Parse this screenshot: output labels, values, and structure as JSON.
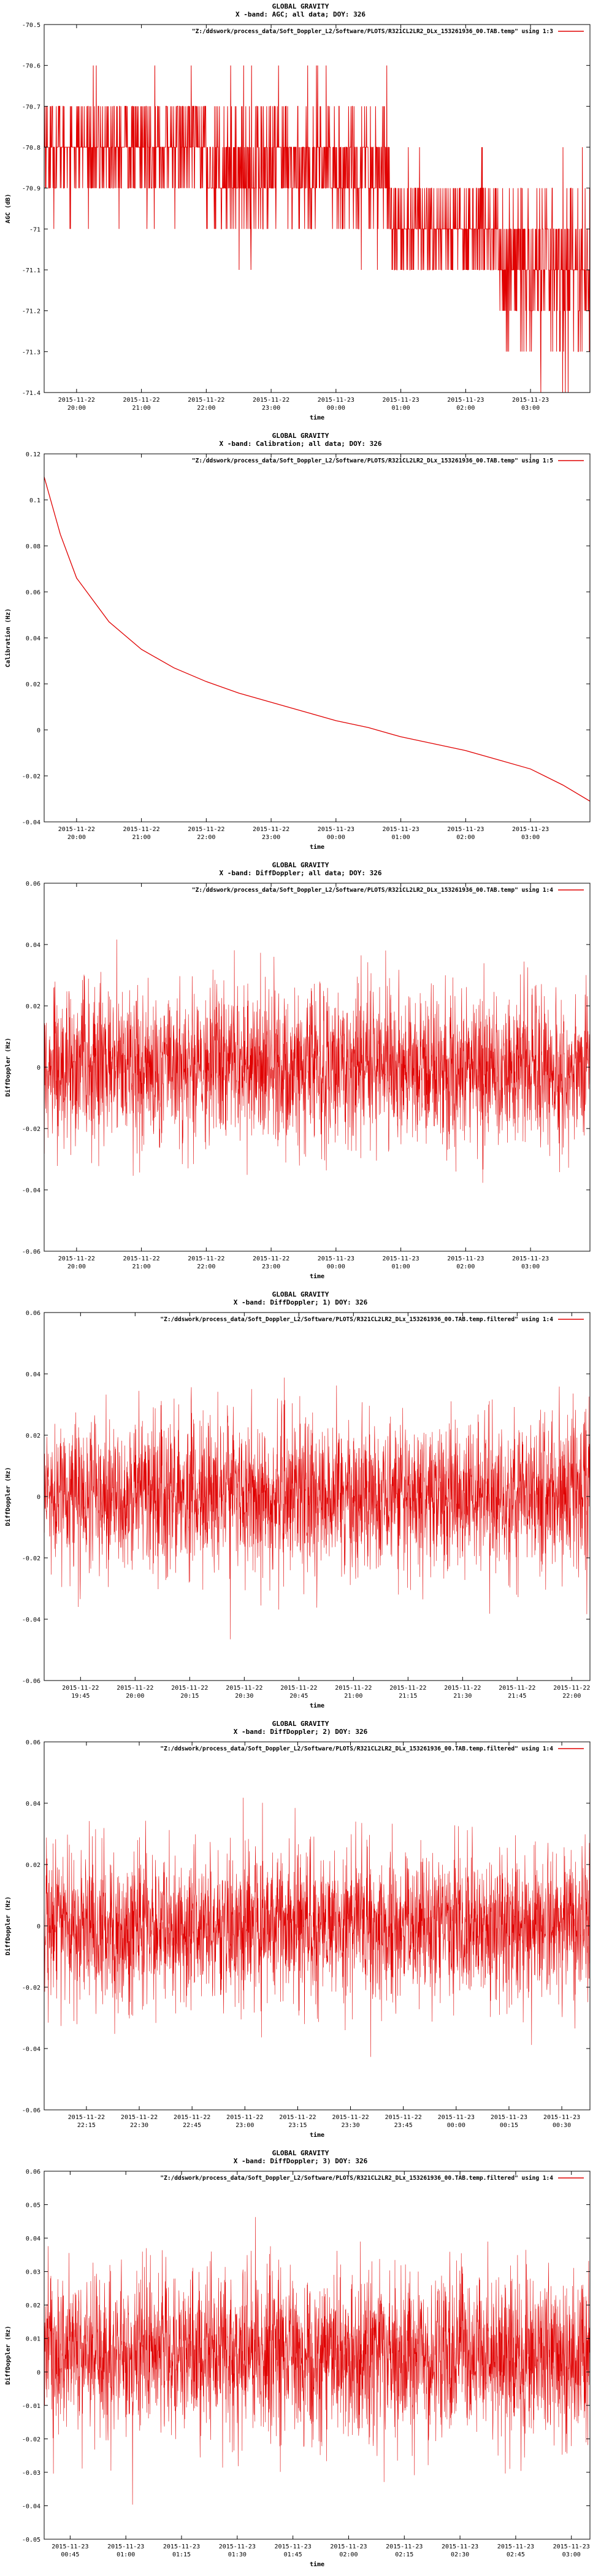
{
  "series_color": "#e00000",
  "chart_data": [
    {
      "type": "line",
      "title": "GLOBAL GRAVITY",
      "subtitle": "X -band: AGC; all data; DOY: 326",
      "legend": "\"Z:/ddswork/process_data/Soft_Doppler_L2/Software/PLOTS/R321CL2LR2_DLx_153261936_00.TAB.temp\" using 1:3",
      "legend_position": "top-right",
      "xlabel": "time",
      "ylabel": "AGC (dB)",
      "ylim": [
        -71.4,
        -70.5
      ],
      "yticks": [
        "-70.5",
        "-70.6",
        "-70.7",
        "-70.8",
        "-70.9",
        "-71",
        "-71.1",
        "-71.2",
        "-71.3",
        "-71.4"
      ],
      "xticks": [
        [
          "2015-11-22",
          "20:00"
        ],
        [
          "2015-11-22",
          "21:00"
        ],
        [
          "2015-11-22",
          "22:00"
        ],
        [
          "2015-11-22",
          "23:00"
        ],
        [
          "2015-11-23",
          "00:00"
        ],
        [
          "2015-11-23",
          "01:00"
        ],
        [
          "2015-11-23",
          "02:00"
        ],
        [
          "2015-11-23",
          "03:00"
        ]
      ],
      "xlim": [
        "2015-11-22 19:30",
        "2015-11-23 03:55"
      ],
      "x_tick_dates": [
        "2015-11-22 20:00",
        "2015-11-22 21:00",
        "2015-11-22 22:00",
        "2015-11-22 23:00",
        "2015-11-23 00:00",
        "2015-11-23 01:00",
        "2015-11-23 02:00",
        "2015-11-23 03:00"
      ],
      "series_shape": "quantized-steps",
      "data_summary": {
        "levels": [
          -70.6,
          -70.7,
          -70.8,
          -70.9,
          -71.0,
          -71.1,
          -71.2,
          -71.3
        ],
        "segments": [
          {
            "from": "2015-11-22 19:30",
            "to": "2015-11-22 19:40",
            "low": -71.0,
            "high": -70.6
          },
          {
            "from": "2015-11-22 19:40",
            "to": "2015-11-22 22:00",
            "low": -71.0,
            "high": -70.6
          },
          {
            "from": "2015-11-22 22:00",
            "to": "2015-11-23 00:50",
            "low": -71.1,
            "high": -70.6
          },
          {
            "from": "2015-11-23 00:50",
            "to": "2015-11-23 02:30",
            "low": -71.2,
            "high": -70.8
          },
          {
            "from": "2015-11-23 02:30",
            "to": "2015-11-23 03:55",
            "low": -71.4,
            "high": -70.8
          }
        ]
      },
      "grid": false
    },
    {
      "type": "line",
      "title": "GLOBAL GRAVITY",
      "subtitle": "X -band: Calibration; all data; DOY: 326",
      "legend": "\"Z:/ddswork/process_data/Soft_Doppler_L2/Software/PLOTS/R321CL2LR2_DLx_153261936_00.TAB.temp\" using 1:5",
      "legend_position": "top-right",
      "xlabel": "time",
      "ylabel": "Calibration (Hz)",
      "ylim": [
        -0.04,
        0.12
      ],
      "yticks": [
        "0.12",
        "0.1",
        "0.08",
        "0.06",
        "0.04",
        "0.02",
        "0",
        "-0.02",
        "-0.04"
      ],
      "xticks": [
        [
          "2015-11-22",
          "20:00"
        ],
        [
          "2015-11-22",
          "21:00"
        ],
        [
          "2015-11-22",
          "22:00"
        ],
        [
          "2015-11-22",
          "23:00"
        ],
        [
          "2015-11-23",
          "00:00"
        ],
        [
          "2015-11-23",
          "01:00"
        ],
        [
          "2015-11-23",
          "02:00"
        ],
        [
          "2015-11-23",
          "03:00"
        ]
      ],
      "xlim": [
        "2015-11-22 19:30",
        "2015-11-23 03:55"
      ],
      "x_tick_dates": [
        "2015-11-22 20:00",
        "2015-11-22 21:00",
        "2015-11-22 22:00",
        "2015-11-22 23:00",
        "2015-11-23 00:00",
        "2015-11-23 01:00",
        "2015-11-23 02:00",
        "2015-11-23 03:00"
      ],
      "series_shape": "smooth-curve",
      "x": [
        "2015-11-22 19:30",
        "2015-11-22 19:45",
        "2015-11-22 20:00",
        "2015-11-22 20:30",
        "2015-11-22 21:00",
        "2015-11-22 21:30",
        "2015-11-22 22:00",
        "2015-11-22 22:30",
        "2015-11-22 23:00",
        "2015-11-22 23:30",
        "2015-11-23 00:00",
        "2015-11-23 00:30",
        "2015-11-23 01:00",
        "2015-11-23 01:30",
        "2015-11-23 02:00",
        "2015-11-23 02:30",
        "2015-11-23 03:00",
        "2015-11-23 03:30",
        "2015-11-23 03:55"
      ],
      "y": [
        0.11,
        0.085,
        0.066,
        0.047,
        0.035,
        0.027,
        0.021,
        0.016,
        0.012,
        0.008,
        0.004,
        0.001,
        -0.003,
        -0.006,
        -0.009,
        -0.013,
        -0.017,
        -0.024,
        -0.031
      ],
      "grid": false
    },
    {
      "type": "line",
      "title": "GLOBAL GRAVITY",
      "subtitle": "X -band: DiffDoppler; all data; DOY: 326",
      "legend": "\"Z:/ddswork/process_data/Soft_Doppler_L2/Software/PLOTS/R321CL2LR2_DLx_153261936_00.TAB.temp\" using 1:4",
      "legend_position": "top-right",
      "xlabel": "time",
      "ylabel": "DiffDoppler (Hz)",
      "ylim": [
        -0.06,
        0.06
      ],
      "yticks": [
        "0.06",
        "0.04",
        "0.02",
        "0",
        "-0.02",
        "-0.04",
        "-0.06"
      ],
      "xticks": [
        [
          "2015-11-22",
          "20:00"
        ],
        [
          "2015-11-22",
          "21:00"
        ],
        [
          "2015-11-22",
          "22:00"
        ],
        [
          "2015-11-22",
          "23:00"
        ],
        [
          "2015-11-23",
          "00:00"
        ],
        [
          "2015-11-23",
          "01:00"
        ],
        [
          "2015-11-23",
          "02:00"
        ],
        [
          "2015-11-23",
          "03:00"
        ]
      ],
      "xlim": [
        "2015-11-22 19:30",
        "2015-11-23 03:55"
      ],
      "x_tick_dates": [
        "2015-11-22 20:00",
        "2015-11-22 21:00",
        "2015-11-22 22:00",
        "2015-11-22 23:00",
        "2015-11-23 00:00",
        "2015-11-23 01:00",
        "2015-11-23 02:00",
        "2015-11-23 03:00"
      ],
      "series_shape": "noise",
      "data_summary": {
        "mean": 0.0,
        "typical_band": [
          -0.02,
          0.02
        ],
        "extremes": [
          -0.05,
          0.05
        ]
      },
      "grid": false
    },
    {
      "type": "line",
      "title": "GLOBAL GRAVITY",
      "subtitle": "X -band: DiffDoppler; 1) DOY: 326",
      "legend": "\"Z:/ddswork/process_data/Soft_Doppler_L2/Software/PLOTS/R321CL2LR2_DLx_153261936_00.TAB.temp.filtered\" using 1:4",
      "legend_position": "top-right",
      "xlabel": "time",
      "ylabel": "DiffDoppler (Hz)",
      "ylim": [
        -0.06,
        0.06
      ],
      "yticks": [
        "0.06",
        "0.04",
        "0.02",
        "0",
        "-0.02",
        "-0.04",
        "-0.06"
      ],
      "xticks": [
        [
          "2015-11-22",
          "19:45"
        ],
        [
          "2015-11-22",
          "20:00"
        ],
        [
          "2015-11-22",
          "20:15"
        ],
        [
          "2015-11-22",
          "20:30"
        ],
        [
          "2015-11-22",
          "20:45"
        ],
        [
          "2015-11-22",
          "21:00"
        ],
        [
          "2015-11-22",
          "21:15"
        ],
        [
          "2015-11-22",
          "21:30"
        ],
        [
          "2015-11-22",
          "21:45"
        ],
        [
          "2015-11-22",
          "22:00"
        ]
      ],
      "xlim": [
        "2015-11-22 19:35",
        "2015-11-22 22:05"
      ],
      "x_tick_dates": [
        "2015-11-22 19:45",
        "2015-11-22 20:00",
        "2015-11-22 20:15",
        "2015-11-22 20:30",
        "2015-11-22 20:45",
        "2015-11-22 21:00",
        "2015-11-22 21:15",
        "2015-11-22 21:30",
        "2015-11-22 21:45",
        "2015-11-22 22:00"
      ],
      "series_shape": "noise",
      "data_summary": {
        "mean": 0.0,
        "typical_band": [
          -0.02,
          0.02
        ],
        "extremes": [
          -0.05,
          0.045
        ]
      },
      "grid": false
    },
    {
      "type": "line",
      "title": "GLOBAL GRAVITY",
      "subtitle": "X -band: DiffDoppler; 2) DOY: 326",
      "legend": "\"Z:/ddswork/process_data/Soft_Doppler_L2/Software/PLOTS/R321CL2LR2_DLx_153261936_00.TAB.temp.filtered\" using 1:4",
      "legend_position": "top-right",
      "xlabel": "time",
      "ylabel": "DiffDoppler (Hz)",
      "ylim": [
        -0.06,
        0.06
      ],
      "yticks": [
        "0.06",
        "0.04",
        "0.02",
        "0",
        "-0.02",
        "-0.04",
        "-0.06"
      ],
      "xticks": [
        [
          "2015-11-22",
          "22:15"
        ],
        [
          "2015-11-22",
          "22:30"
        ],
        [
          "2015-11-22",
          "22:45"
        ],
        [
          "2015-11-22",
          "23:00"
        ],
        [
          "2015-11-22",
          "23:15"
        ],
        [
          "2015-11-22",
          "23:30"
        ],
        [
          "2015-11-22",
          "23:45"
        ],
        [
          "2015-11-23",
          "00:00"
        ],
        [
          "2015-11-23",
          "00:15"
        ],
        [
          "2015-11-23",
          "00:30"
        ]
      ],
      "xlim": [
        "2015-11-22 22:03",
        "2015-11-23 00:38"
      ],
      "x_tick_dates": [
        "2015-11-22 22:15",
        "2015-11-22 22:30",
        "2015-11-22 22:45",
        "2015-11-22 23:00",
        "2015-11-22 23:15",
        "2015-11-22 23:30",
        "2015-11-22 23:45",
        "2015-11-23 00:00",
        "2015-11-23 00:15",
        "2015-11-23 00:30"
      ],
      "series_shape": "noise",
      "data_summary": {
        "mean": 0.0,
        "typical_band": [
          -0.02,
          0.02
        ],
        "extremes": [
          -0.05,
          0.05
        ]
      },
      "grid": false
    },
    {
      "type": "line",
      "title": "GLOBAL GRAVITY",
      "subtitle": "X -band: DiffDoppler; 3) DOY: 326",
      "legend": "\"Z:/ddswork/process_data/Soft_Doppler_L2/Software/PLOTS/R321CL2LR2_DLx_153261936_00.TAB.temp.filtered\" using 1:4",
      "legend_position": "top-right",
      "xlabel": "time",
      "ylabel": "DiffDoppler (Hz)",
      "ylim": [
        -0.05,
        0.06
      ],
      "yticks": [
        "0.06",
        "0.05",
        "0.04",
        "0.03",
        "0.02",
        "0.01",
        "0",
        "-0.01",
        "-0.02",
        "-0.03",
        "-0.04",
        "-0.05"
      ],
      "xticks": [
        [
          "2015-11-23",
          "00:45"
        ],
        [
          "2015-11-23",
          "01:00"
        ],
        [
          "2015-11-23",
          "01:15"
        ],
        [
          "2015-11-23",
          "01:30"
        ],
        [
          "2015-11-23",
          "01:45"
        ],
        [
          "2015-11-23",
          "02:00"
        ],
        [
          "2015-11-23",
          "02:15"
        ],
        [
          "2015-11-23",
          "02:30"
        ],
        [
          "2015-11-23",
          "02:45"
        ],
        [
          "2015-11-23",
          "03:00"
        ]
      ],
      "xlim": [
        "2015-11-23 00:38",
        "2015-11-23 03:05"
      ],
      "x_tick_dates": [
        "2015-11-23 00:45",
        "2015-11-23 01:00",
        "2015-11-23 01:15",
        "2015-11-23 01:30",
        "2015-11-23 01:45",
        "2015-11-23 02:00",
        "2015-11-23 02:15",
        "2015-11-23 02:30",
        "2015-11-23 02:45",
        "2015-11-23 03:00"
      ],
      "series_shape": "noise",
      "data_summary": {
        "mean": 0.005,
        "typical_band": [
          -0.015,
          0.025
        ],
        "extremes": [
          -0.04,
          0.052
        ]
      },
      "grid": false
    }
  ]
}
